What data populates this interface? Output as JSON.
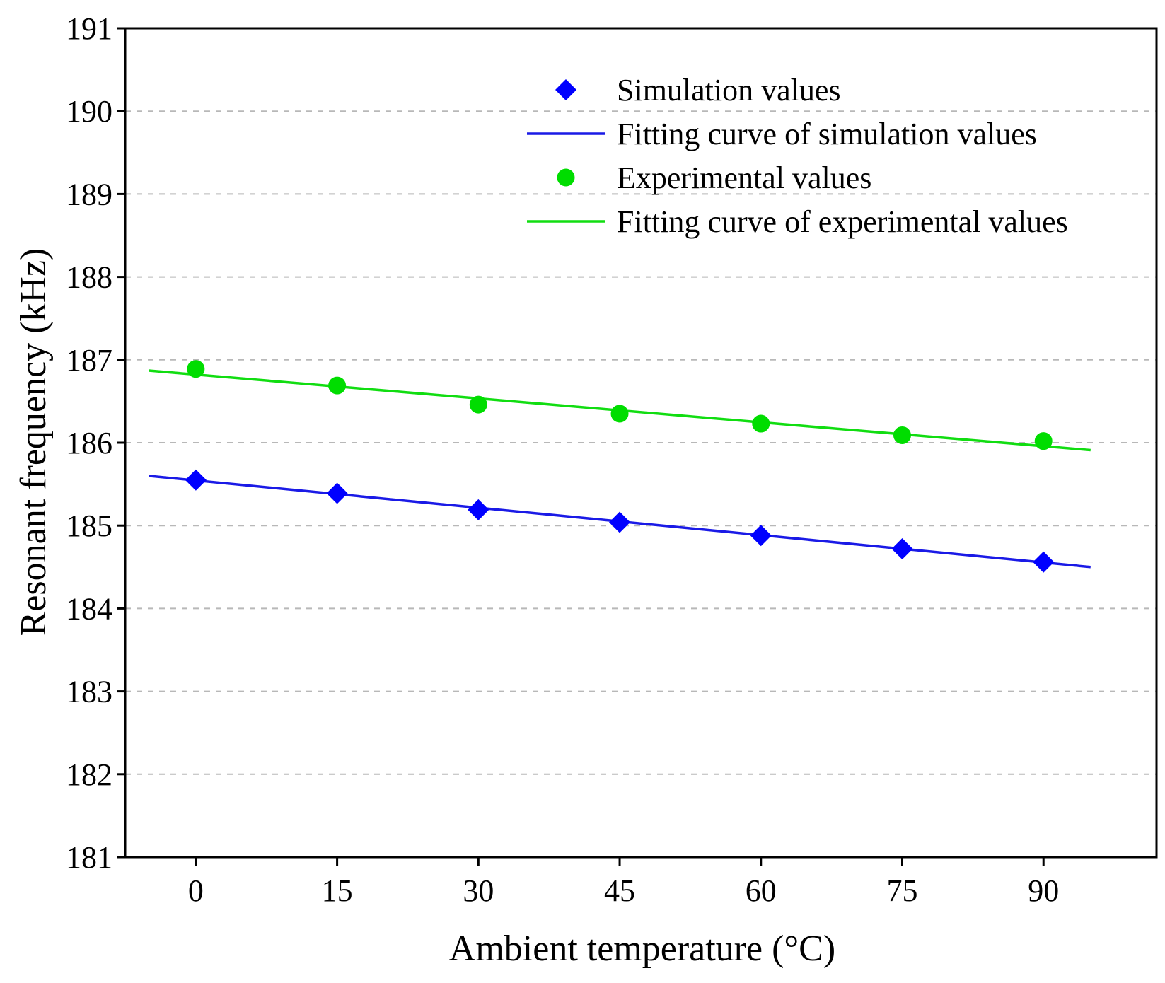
{
  "chart_data": {
    "type": "scatter",
    "title": "",
    "xlabel": "Ambient temperature (°C)",
    "ylabel": "Resonant frequency (kHz)",
    "xlim": [
      -7.5,
      102
    ],
    "ylim": [
      181,
      191
    ],
    "xticks": [
      0,
      15,
      30,
      45,
      60,
      75,
      90
    ],
    "yticks": [
      181,
      182,
      183,
      184,
      185,
      186,
      187,
      188,
      189,
      190,
      191
    ],
    "grid": "horizontal dashed",
    "legend_position": "top-right",
    "series": [
      {
        "name": "Simulation values",
        "kind": "markers",
        "marker": "diamond",
        "color": "#0000ff",
        "x": [
          0,
          15,
          30,
          45,
          60,
          75,
          90
        ],
        "y": [
          185.55,
          185.39,
          185.19,
          185.04,
          184.88,
          184.72,
          184.56
        ]
      },
      {
        "name": "Fitting curve of simulation values",
        "kind": "line",
        "color": "#1a1ae6",
        "x": [
          -5,
          95
        ],
        "y": [
          185.6,
          184.5
        ]
      },
      {
        "name": "Experimental values",
        "kind": "markers",
        "marker": "circle",
        "color": "#00dd00",
        "x": [
          0,
          15,
          30,
          45,
          60,
          75,
          90
        ],
        "y": [
          186.89,
          186.69,
          186.46,
          186.35,
          186.23,
          186.09,
          186.02
        ]
      },
      {
        "name": "Fitting curve of experimental values",
        "kind": "line",
        "color": "#11dd11",
        "x": [
          -5,
          95
        ],
        "y": [
          186.87,
          185.91
        ]
      }
    ]
  }
}
